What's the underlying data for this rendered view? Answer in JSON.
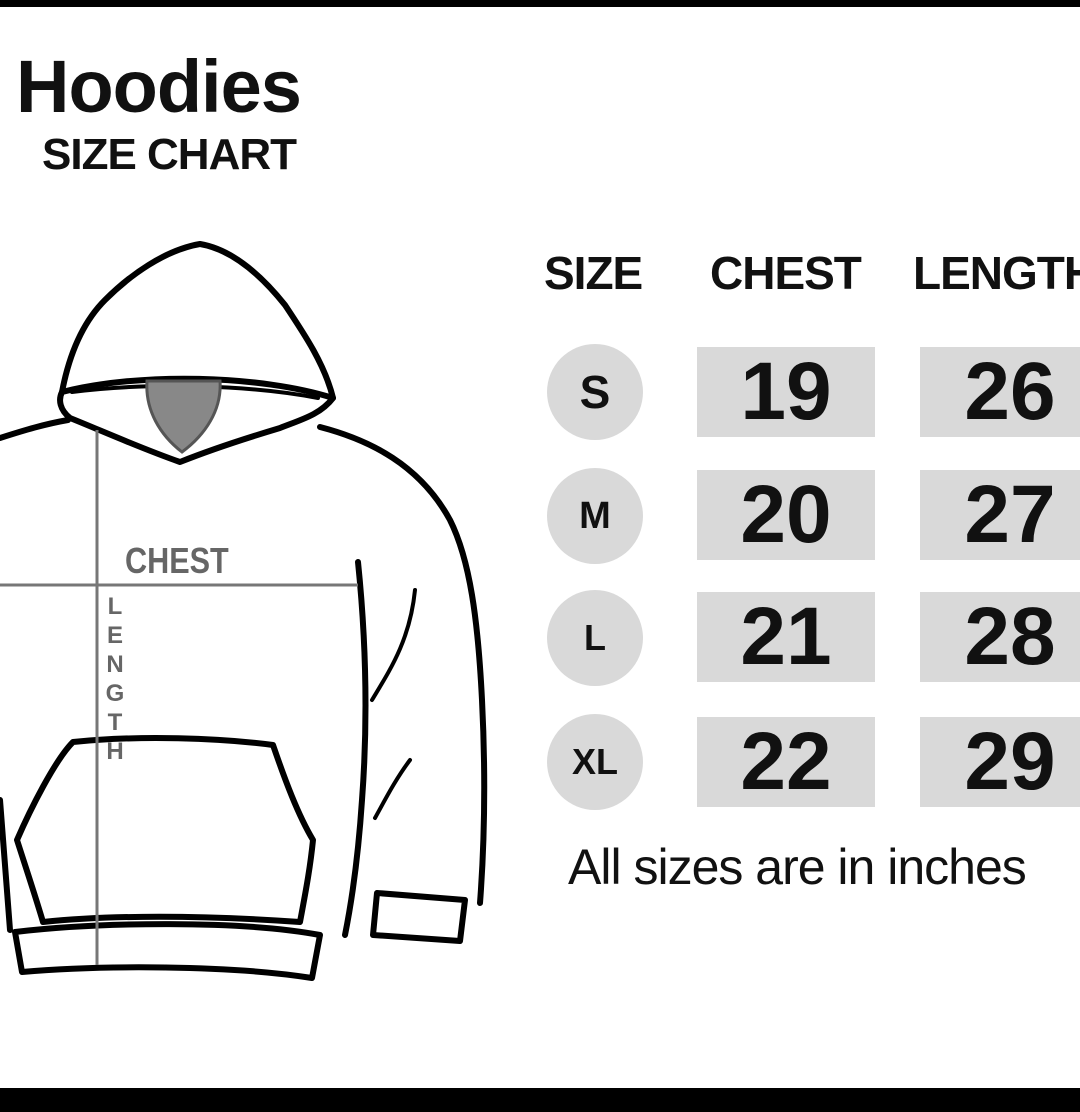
{
  "header": {
    "title": "Hoodies",
    "subtitle": "SIZE CHART"
  },
  "diagram": {
    "chest_label": "CHEST",
    "length_letters": [
      "L",
      "E",
      "N",
      "G",
      "T",
      "H"
    ]
  },
  "table": {
    "columns": [
      "SIZE",
      "CHEST",
      "LENGTH"
    ],
    "rows": [
      {
        "size": "S",
        "chest": "19",
        "length": "26"
      },
      {
        "size": "M",
        "chest": "20",
        "length": "27"
      },
      {
        "size": "L",
        "chest": "21",
        "length": "28"
      },
      {
        "size": "XL",
        "chest": "22",
        "length": "29"
      }
    ]
  },
  "footer": {
    "note": "All sizes are in inches"
  },
  "colors": {
    "cell_bg": "#d9d9d9",
    "text": "#111111",
    "measure_line": "#777777"
  }
}
